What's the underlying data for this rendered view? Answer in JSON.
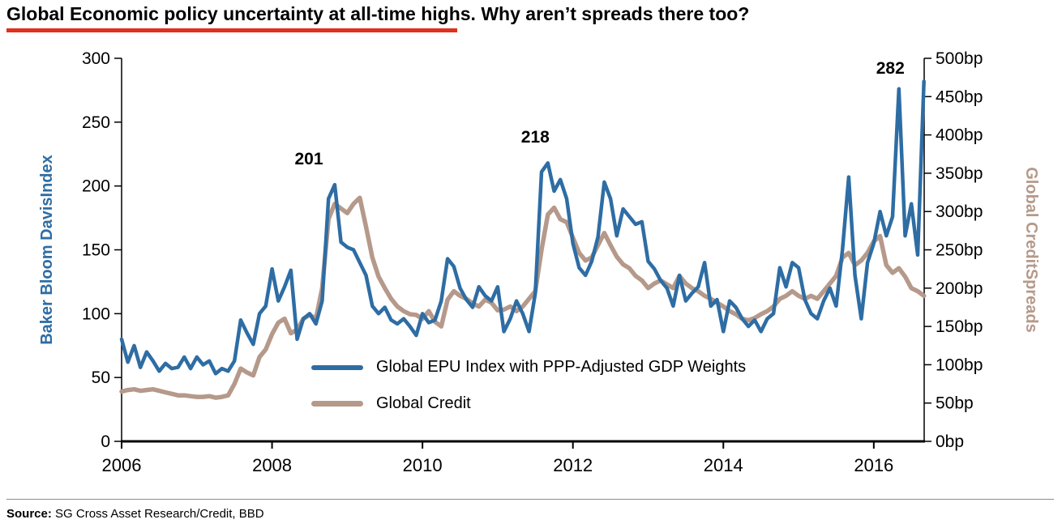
{
  "header": {
    "title": "Global Economic policy uncertainty at all-time highs. Why aren’t spreads there too?",
    "underline_color": "#E0301E"
  },
  "footer": {
    "source_label": "Source:",
    "source_text": " SG Cross Asset Research/Credit, BBD"
  },
  "chart_data": {
    "type": "line",
    "title": "Global Economic policy uncertainty at all-time highs. Why aren’t spreads there too?",
    "x_axis": {
      "min": 2006,
      "max": 2016.67,
      "ticks": [
        2006,
        2008,
        2010,
        2012,
        2014,
        2016
      ]
    },
    "y_left": {
      "label": "Baker Bloom DavisIndex",
      "min": 0,
      "max": 300,
      "ticks": [
        0,
        50,
        100,
        150,
        200,
        250,
        300
      ],
      "suffix": "",
      "color": "#2E6DA4"
    },
    "y_right": {
      "label": "Global CreditSpreads",
      "min": 0,
      "max": 500,
      "ticks": [
        0,
        50,
        100,
        150,
        200,
        250,
        300,
        350,
        400,
        450,
        500
      ],
      "suffix": "bp",
      "color": "#B5998A"
    },
    "x_start": 2006.0,
    "x_step": 0.0833333,
    "series": [
      {
        "name": "Global EPU Index with PPP-Adjusted GDP Weights",
        "axis": "left",
        "color": "#2E6DA4",
        "values": [
          80,
          62,
          75,
          58,
          70,
          63,
          55,
          61,
          57,
          58,
          66,
          57,
          66,
          60,
          63,
          53,
          57,
          55,
          63,
          95,
          85,
          76,
          100,
          106,
          135,
          110,
          121,
          134,
          80,
          96,
          100,
          92,
          110,
          190,
          201,
          156,
          152,
          150,
          140,
          130,
          106,
          100,
          105,
          95,
          92,
          96,
          90,
          83,
          100,
          93,
          95,
          110,
          143,
          137,
          120,
          111,
          105,
          121,
          114,
          110,
          121,
          86,
          96,
          110,
          100,
          86,
          116,
          211,
          218,
          196,
          205,
          190,
          155,
          136,
          130,
          141,
          160,
          203,
          190,
          161,
          182,
          176,
          170,
          172,
          141,
          135,
          126,
          120,
          106,
          130,
          110,
          116,
          121,
          140,
          106,
          111,
          86,
          110,
          105,
          96,
          90,
          95,
          86,
          96,
          100,
          136,
          121,
          140,
          136,
          111,
          100,
          96,
          110,
          120,
          106,
          150,
          207,
          130,
          96,
          140,
          155,
          180,
          161,
          176,
          276,
          161,
          186,
          146,
          282
        ]
      },
      {
        "name": "Global Credit",
        "axis": "right",
        "color": "#B5998A",
        "values": [
          65,
          67,
          68,
          66,
          67,
          68,
          66,
          64,
          62,
          60,
          60,
          59,
          58,
          58,
          59,
          57,
          58,
          60,
          75,
          95,
          90,
          86,
          110,
          120,
          140,
          155,
          160,
          141,
          146,
          160,
          165,
          160,
          200,
          290,
          310,
          304,
          298,
          310,
          318,
          280,
          240,
          215,
          200,
          186,
          176,
          170,
          166,
          165,
          160,
          170,
          156,
          150,
          185,
          196,
          190,
          186,
          180,
          176,
          185,
          181,
          171,
          172,
          176,
          170,
          176,
          186,
          196,
          250,
          296,
          305,
          290,
          286,
          266,
          246,
          236,
          240,
          256,
          272,
          256,
          241,
          231,
          226,
          216,
          210,
          200,
          206,
          210,
          205,
          200,
          216,
          206,
          200,
          196,
          190,
          186,
          181,
          176,
          170,
          166,
          160,
          158,
          161,
          166,
          170,
          176,
          186,
          190,
          196,
          190,
          186,
          190,
          186,
          196,
          206,
          216,
          240,
          246,
          230,
          236,
          246,
          261,
          268,
          230,
          220,
          226,
          215,
          200,
          196,
          190
        ]
      }
    ],
    "annotations": [
      {
        "text": "201",
        "x": 2008.49,
        "y": 217
      },
      {
        "text": "218",
        "x": 2011.5,
        "y": 234
      },
      {
        "text": "282",
        "x": 2016.22,
        "y": 288
      }
    ],
    "legend": {
      "position": "inside-bottom-left"
    }
  }
}
